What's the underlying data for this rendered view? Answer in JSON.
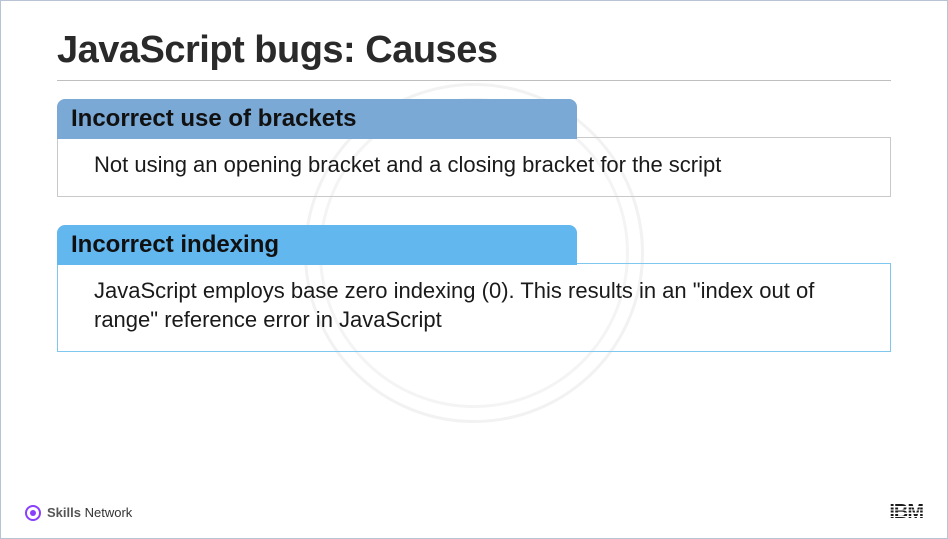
{
  "slide": {
    "title": "JavaScript bugs: Causes",
    "background_color": "#ffffff",
    "border_color": "#b8c4d4",
    "title_color": "#2a2a2a",
    "title_fontsize": 38,
    "title_underline_color": "#bfbfbf"
  },
  "cards": [
    {
      "header": "Incorrect use of brackets",
      "body": "Not using an opening bracket and a closing bracket for the script",
      "header_bg": "#7aa9d6",
      "border_color": "#c9c9c9",
      "header_fontsize": 24,
      "body_fontsize": 22
    },
    {
      "header": "Incorrect indexing",
      "body": "JavaScript employs base zero indexing (0). This results in an \"index out of range\" reference error in JavaScript",
      "header_bg": "#62b7ef",
      "border_color": "#7fc7ef",
      "header_fontsize": 24,
      "body_fontsize": 22
    }
  ],
  "footer": {
    "skills_bold": "Skills",
    "skills_rest": "Network",
    "skills_accent": "#8a3ffc",
    "ibm_label": "IBM",
    "ibm_color": "#1a1a1a"
  }
}
